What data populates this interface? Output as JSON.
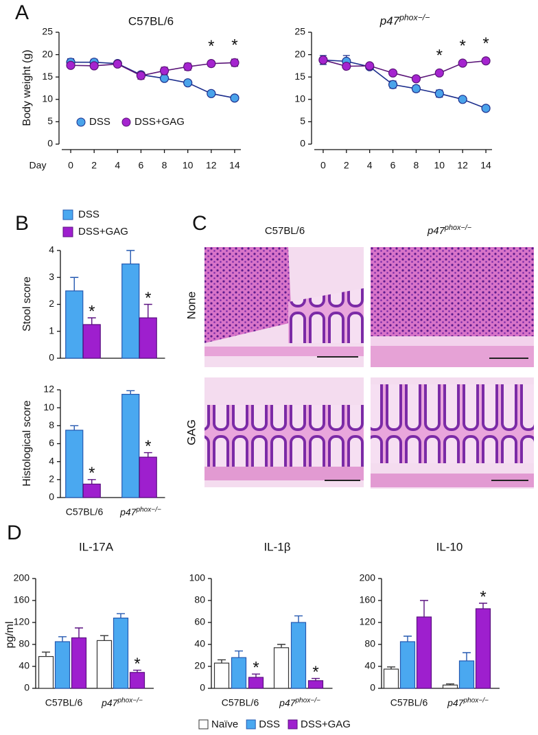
{
  "chart_data": [
    {
      "type": "line",
      "title": "C57BL/6",
      "x_label": "Day",
      "y_label": "Body weight (g)",
      "x": [
        0,
        2,
        4,
        6,
        8,
        10,
        12,
        14
      ],
      "xlim": [
        -1,
        15
      ],
      "xticks": [
        0,
        2,
        4,
        6,
        8,
        10,
        12,
        14
      ],
      "ylim": [
        0,
        25
      ],
      "yticks": [
        0,
        5,
        10,
        15,
        20,
        25
      ],
      "legend": "lower left",
      "series": [
        {
          "name": "DSS",
          "color": "#4aa3ea",
          "line_color": "#1b2d8c",
          "values": [
            18.3,
            18.3,
            18.0,
            15.5,
            14.7,
            13.7,
            11.3,
            10.3
          ],
          "errors": [
            0.8,
            0.7,
            0.4,
            0.6,
            0.4,
            0.4,
            0.4,
            0.3
          ]
        },
        {
          "name": "DSS+GAG",
          "color": "#a524cf",
          "line_color": "#5a1478",
          "values": [
            17.6,
            17.5,
            17.9,
            15.3,
            16.4,
            17.3,
            18.0,
            18.2
          ],
          "errors": [
            0.5,
            0.5,
            0.5,
            0.8,
            0.8,
            0.8,
            0.6,
            0.8
          ],
          "annotations": [
            null,
            null,
            null,
            null,
            null,
            null,
            "*",
            "*"
          ]
        }
      ]
    },
    {
      "type": "line",
      "title": "p47phox−/−",
      "x": [
        0,
        2,
        4,
        6,
        8,
        10,
        12,
        14
      ],
      "xlim": [
        -1,
        15
      ],
      "xticks": [
        0,
        2,
        4,
        6,
        8,
        10,
        12,
        14
      ],
      "ylim": [
        0,
        25
      ],
      "yticks": [
        0,
        5,
        10,
        15,
        20,
        25
      ],
      "series": [
        {
          "name": "DSS",
          "color": "#4aa3ea",
          "line_color": "#1b2d8c",
          "values": [
            18.8,
            18.5,
            17.3,
            13.3,
            12.4,
            11.3,
            10.0,
            8.0
          ],
          "errors": [
            1.0,
            1.3,
            0.5,
            0.8,
            0.7,
            0.8,
            0.4,
            0.3
          ]
        },
        {
          "name": "DSS+GAG",
          "color": "#a524cf",
          "line_color": "#5a1478",
          "values": [
            18.8,
            17.4,
            17.5,
            15.9,
            14.6,
            15.9,
            18.1,
            18.6
          ],
          "errors": [
            0.5,
            0.4,
            0.4,
            0.4,
            0.5,
            0.5,
            0.4,
            0.4
          ],
          "annotations": [
            null,
            null,
            null,
            null,
            null,
            "*",
            "*",
            "*"
          ]
        }
      ]
    },
    {
      "type": "bar",
      "y_label": "Stool score",
      "categories": [
        null,
        null
      ],
      "ylim": [
        0,
        4
      ],
      "yticks": [
        0,
        1,
        2,
        3,
        4
      ],
      "legend": "top",
      "series": [
        {
          "name": "DSS",
          "color": "#4aa8f0",
          "edgecolor": "#2458b0",
          "values": [
            2.5,
            3.5
          ],
          "errors": [
            0.5,
            0.5
          ]
        },
        {
          "name": "DSS+GAG",
          "color": "#9e1fce",
          "edgecolor": "#5a1080",
          "values": [
            1.25,
            1.5
          ],
          "errors": [
            0.25,
            0.5
          ],
          "annotations": [
            "*",
            "*"
          ]
        }
      ]
    },
    {
      "type": "bar",
      "y_label": "Histological score",
      "categories": [
        "C57BL/6",
        "p47phox−/−"
      ],
      "ylim": [
        0,
        12
      ],
      "yticks": [
        0,
        2,
        4,
        6,
        8,
        10,
        12
      ],
      "series": [
        {
          "name": "DSS",
          "color": "#4aa8f0",
          "edgecolor": "#2458b0",
          "values": [
            7.5,
            11.5
          ],
          "errors": [
            0.5,
            0.4
          ]
        },
        {
          "name": "DSS+GAG",
          "color": "#9e1fce",
          "edgecolor": "#5a1080",
          "values": [
            1.5,
            4.5
          ],
          "errors": [
            0.5,
            0.5
          ],
          "annotations": [
            "*",
            "*"
          ]
        }
      ]
    },
    {
      "type": "bar",
      "title": "IL-17A",
      "y_label": "pg/ml",
      "categories": [
        "C57BL/6",
        "p47phox−/−"
      ],
      "ylim": [
        0,
        200
      ],
      "yticks": [
        0,
        40,
        80,
        120,
        160,
        200
      ],
      "legend": "bottom",
      "series": [
        {
          "name": "Naïve",
          "color": "#ffffff",
          "edgecolor": "#333333",
          "values": [
            58,
            87
          ],
          "errors": [
            8,
            9
          ]
        },
        {
          "name": "DSS",
          "color": "#4aa8f0",
          "edgecolor": "#2458b0",
          "values": [
            85,
            128
          ],
          "errors": [
            9,
            8
          ]
        },
        {
          "name": "DSS+GAG",
          "color": "#9e1fce",
          "edgecolor": "#5a1080",
          "values": [
            92,
            29
          ],
          "errors": [
            18,
            4
          ],
          "annotations": [
            null,
            "*"
          ]
        }
      ]
    },
    {
      "type": "bar",
      "title": "IL-1β",
      "categories": [
        "C57BL/6",
        "p47phox−/−"
      ],
      "ylim": [
        0,
        100
      ],
      "yticks": [
        0,
        20,
        40,
        60,
        80,
        100
      ],
      "series": [
        {
          "name": "Naïve",
          "color": "#ffffff",
          "edgecolor": "#333333",
          "values": [
            23,
            37
          ],
          "errors": [
            3,
            3
          ]
        },
        {
          "name": "DSS",
          "color": "#4aa8f0",
          "edgecolor": "#2458b0",
          "values": [
            28,
            60
          ],
          "errors": [
            6,
            6
          ]
        },
        {
          "name": "DSS+GAG",
          "color": "#9e1fce",
          "edgecolor": "#5a1080",
          "values": [
            10,
            7
          ],
          "errors": [
            3,
            2
          ],
          "annotations": [
            "*",
            "*"
          ]
        }
      ]
    },
    {
      "type": "bar",
      "title": "IL-10",
      "categories": [
        "C57BL/6",
        "p47phox−/−"
      ],
      "ylim": [
        0,
        200
      ],
      "yticks": [
        0,
        40,
        80,
        120,
        160,
        200
      ],
      "series": [
        {
          "name": "Naïve",
          "color": "#ffffff",
          "edgecolor": "#333333",
          "values": [
            35,
            6
          ],
          "errors": [
            4,
            2
          ]
        },
        {
          "name": "DSS",
          "color": "#4aa8f0",
          "edgecolor": "#2458b0",
          "values": [
            85,
            50
          ],
          "errors": [
            10,
            15
          ]
        },
        {
          "name": "DSS+GAG",
          "color": "#9e1fce",
          "edgecolor": "#5a1080",
          "values": [
            130,
            145
          ],
          "errors": [
            30,
            10
          ],
          "annotations": [
            null,
            "*"
          ]
        }
      ]
    }
  ],
  "figure": {
    "panel_labels": [
      "A",
      "B",
      "C",
      "D"
    ],
    "histology": {
      "columns": [
        "C57BL/6",
        "p47phox−/−"
      ],
      "rows": [
        "None",
        "GAG"
      ]
    }
  }
}
